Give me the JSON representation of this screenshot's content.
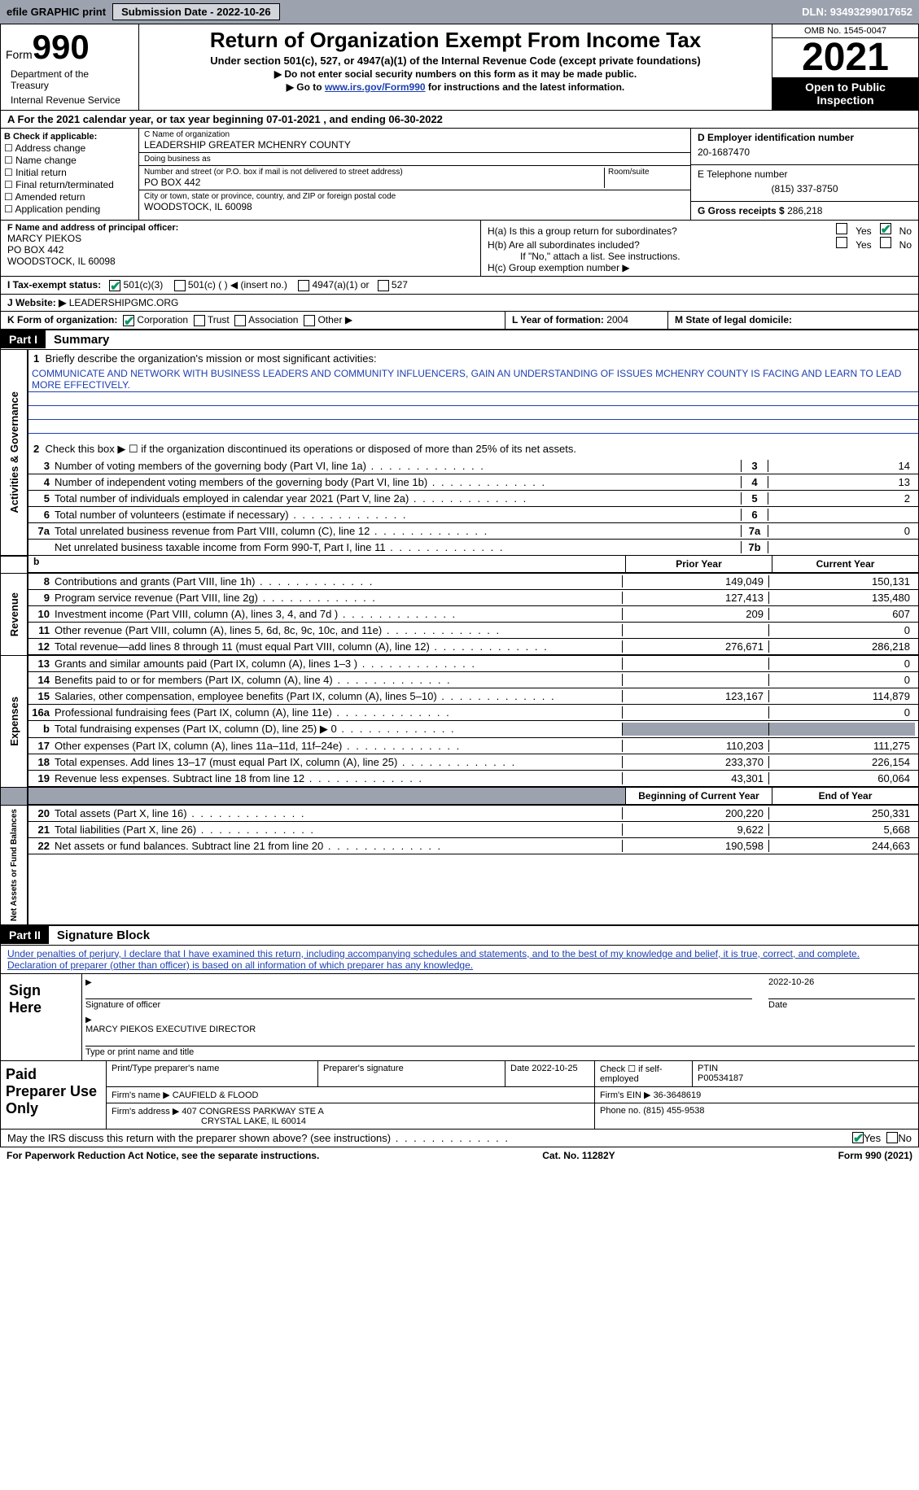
{
  "topbar": {
    "efile": "efile GRAPHIC print",
    "submission": "Submission Date - 2022-10-26",
    "dln": "DLN: 93493299017652"
  },
  "header": {
    "form_label": "Form",
    "form_no": "990",
    "title": "Return of Organization Exempt From Income Tax",
    "sub": "Under section 501(c), 527, or 4947(a)(1) of the Internal Revenue Code (except private foundations)",
    "note1": "▶ Do not enter social security numbers on this form as it may be made public.",
    "note2_pre": "▶ Go to ",
    "note2_link": "www.irs.gov/Form990",
    "note2_post": " for instructions and the latest information.",
    "omb": "OMB No. 1545-0047",
    "year": "2021",
    "open": "Open to Public Inspection",
    "dept": "Department of the Treasury",
    "irs": "Internal Revenue Service"
  },
  "a_line": "A For the 2021 calendar year, or tax year beginning 07-01-2021   , and ending 06-30-2022",
  "b": {
    "title": "B Check if applicable:",
    "items": [
      "Address change",
      "Name change",
      "Initial return",
      "Final return/terminated",
      "Amended return",
      "Application pending"
    ]
  },
  "c": {
    "name_lbl": "C Name of organization",
    "name": "LEADERSHIP GREATER MCHENRY COUNTY",
    "dba_lbl": "Doing business as",
    "dba": "",
    "street_lbl": "Number and street (or P.O. box if mail is not delivered to street address)",
    "room_lbl": "Room/suite",
    "street": "PO BOX 442",
    "city_lbl": "City or town, state or province, country, and ZIP or foreign postal code",
    "city": "WOODSTOCK, IL  60098"
  },
  "d": {
    "ein_lbl": "D Employer identification number",
    "ein": "20-1687470",
    "tel_lbl": "E Telephone number",
    "tel": "(815) 337-8750",
    "gross_lbl": "G Gross receipts $",
    "gross": "286,218"
  },
  "f": {
    "lbl": "F Name and address of principal officer:",
    "name": "MARCY PIEKOS",
    "addr1": "PO BOX 442",
    "addr2": "WOODSTOCK, IL  60098"
  },
  "h": {
    "a": "H(a)  Is this a group return for subordinates?",
    "b": "H(b)  Are all subordinates included?",
    "note": "If \"No,\" attach a list. See instructions.",
    "c": "H(c)  Group exemption number ▶"
  },
  "i": {
    "lbl": "I   Tax-exempt status:",
    "opts": [
      "501(c)(3)",
      "501(c) (  ) ◀ (insert no.)",
      "4947(a)(1) or",
      "527"
    ]
  },
  "j": {
    "lbl": "J   Website: ▶",
    "val": " LEADERSHIPGMC.ORG"
  },
  "k": {
    "lbl": "K Form of organization:",
    "opts": [
      "Corporation",
      "Trust",
      "Association",
      "Other ▶"
    ]
  },
  "l": {
    "lbl": "L Year of formation:",
    "val": "2004"
  },
  "m": {
    "lbl": "M State of legal domicile:",
    "val": ""
  },
  "part1": {
    "hdr": "Part I",
    "title": "Summary"
  },
  "summary": {
    "q1": "Briefly describe the organization's mission or most significant activities:",
    "mission": "COMMUNICATE AND NETWORK WITH BUSINESS LEADERS AND COMMUNITY INFLUENCERS, GAIN AN UNDERSTANDING OF ISSUES MCHENRY COUNTY IS FACING AND LEARN TO LEAD MORE EFFECTIVELY.",
    "q2": "Check this box ▶ ☐  if the organization discontinued its operations or disposed of more than 25% of its net assets.",
    "lines": [
      {
        "n": "3",
        "d": "Number of voting members of the governing body (Part VI, line 1a)",
        "box": "3",
        "v": "14"
      },
      {
        "n": "4",
        "d": "Number of independent voting members of the governing body (Part VI, line 1b)",
        "box": "4",
        "v": "13"
      },
      {
        "n": "5",
        "d": "Total number of individuals employed in calendar year 2021 (Part V, line 2a)",
        "box": "5",
        "v": "2"
      },
      {
        "n": "6",
        "d": "Total number of volunteers (estimate if necessary)",
        "box": "6",
        "v": ""
      },
      {
        "n": "7a",
        "d": "Total unrelated business revenue from Part VIII, column (C), line 12",
        "box": "7a",
        "v": "0"
      },
      {
        "n": "",
        "d": "Net unrelated business taxable income from Form 990-T, Part I, line 11",
        "box": "7b",
        "v": ""
      }
    ],
    "side_act": "Activities & Governance",
    "pyhdr": "Prior Year",
    "cyhdr": "Current Year"
  },
  "revenue": {
    "side": "Revenue",
    "rows": [
      {
        "n": "8",
        "d": "Contributions and grants (Part VIII, line 1h)",
        "py": "149,049",
        "cy": "150,131"
      },
      {
        "n": "9",
        "d": "Program service revenue (Part VIII, line 2g)",
        "py": "127,413",
        "cy": "135,480"
      },
      {
        "n": "10",
        "d": "Investment income (Part VIII, column (A), lines 3, 4, and 7d )",
        "py": "209",
        "cy": "607"
      },
      {
        "n": "11",
        "d": "Other revenue (Part VIII, column (A), lines 5, 6d, 8c, 9c, 10c, and 11e)",
        "py": "",
        "cy": "0"
      },
      {
        "n": "12",
        "d": "Total revenue—add lines 8 through 11 (must equal Part VIII, column (A), line 12)",
        "py": "276,671",
        "cy": "286,218"
      }
    ]
  },
  "expenses": {
    "side": "Expenses",
    "rows": [
      {
        "n": "13",
        "d": "Grants and similar amounts paid (Part IX, column (A), lines 1–3 )",
        "py": "",
        "cy": "0"
      },
      {
        "n": "14",
        "d": "Benefits paid to or for members (Part IX, column (A), line 4)",
        "py": "",
        "cy": "0"
      },
      {
        "n": "15",
        "d": "Salaries, other compensation, employee benefits (Part IX, column (A), lines 5–10)",
        "py": "123,167",
        "cy": "114,879"
      },
      {
        "n": "16a",
        "d": "Professional fundraising fees (Part IX, column (A), line 11e)",
        "py": "",
        "cy": "0"
      },
      {
        "n": "b",
        "d": "Total fundraising expenses (Part IX, column (D), line 25) ▶ 0",
        "py": "GRAY",
        "cy": "GRAY"
      },
      {
        "n": "17",
        "d": "Other expenses (Part IX, column (A), lines 11a–11d, 11f–24e)",
        "py": "110,203",
        "cy": "111,275"
      },
      {
        "n": "18",
        "d": "Total expenses. Add lines 13–17 (must equal Part IX, column (A), line 25)",
        "py": "233,370",
        "cy": "226,154"
      },
      {
        "n": "19",
        "d": "Revenue less expenses. Subtract line 18 from line 12",
        "py": "43,301",
        "cy": "60,064"
      }
    ]
  },
  "netassets": {
    "side": "Net Assets or Fund Balances",
    "bhdr": "Beginning of Current Year",
    "ehdr": "End of Year",
    "rows": [
      {
        "n": "20",
        "d": "Total assets (Part X, line 16)",
        "py": "200,220",
        "cy": "250,331"
      },
      {
        "n": "21",
        "d": "Total liabilities (Part X, line 26)",
        "py": "9,622",
        "cy": "5,668"
      },
      {
        "n": "22",
        "d": "Net assets or fund balances. Subtract line 21 from line 20",
        "py": "190,598",
        "cy": "244,663"
      }
    ]
  },
  "part2": {
    "hdr": "Part II",
    "title": "Signature Block",
    "decl": "Under penalties of perjury, I declare that I have examined this return, including accompanying schedules and statements, and to the best of my knowledge and belief, it is true, correct, and complete. Declaration of preparer (other than officer) is based on all information of which preparer has any knowledge."
  },
  "sign": {
    "lbl": "Sign Here",
    "sig_lbl": "Signature of officer",
    "date": "2022-10-26",
    "date_lbl": "Date",
    "name": "MARCY PIEKOS  EXECUTIVE DIRECTOR",
    "name_lbl": "Type or print name and title"
  },
  "paid": {
    "lbl": "Paid Preparer Use Only",
    "r1": {
      "a": "Print/Type preparer's name",
      "b": "Preparer's signature",
      "c": "Date 2022-10-25",
      "d": "Check ☐ if self-employed",
      "e": "PTIN",
      "ev": "P00534187"
    },
    "r2": {
      "a": "Firm's name   ▶",
      "av": "CAUFIELD & FLOOD",
      "b": "Firm's EIN ▶",
      "bv": "36-3648619"
    },
    "r3": {
      "a": "Firm's address ▶",
      "av1": "407 CONGRESS PARKWAY STE A",
      "av2": "CRYSTAL LAKE, IL  60014",
      "b": "Phone no.",
      "bv": "(815) 455-9538"
    }
  },
  "discuss": "May the IRS discuss this return with the preparer shown above? (see instructions)",
  "footer": {
    "a": "For Paperwork Reduction Act Notice, see the separate instructions.",
    "b": "Cat. No. 11282Y",
    "c": "Form 990 (2021)"
  },
  "colors": {
    "bg": "#ffffff",
    "gray": "#9ca3af",
    "link": "#1e40af",
    "check": "#059669"
  }
}
